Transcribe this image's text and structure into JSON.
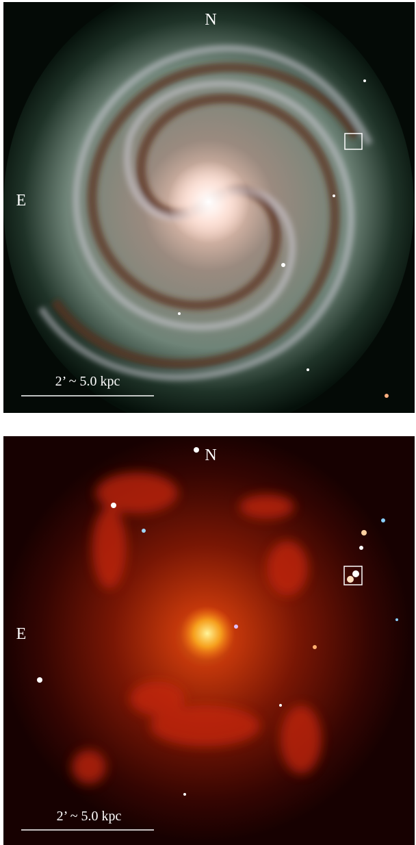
{
  "panels": [
    {
      "north": "N",
      "east": "E",
      "scale": "2’ ~ 5.0 kpc"
    },
    {
      "north": "N",
      "east": "E",
      "scale": "2’ ~ 5.0 kpc"
    }
  ]
}
